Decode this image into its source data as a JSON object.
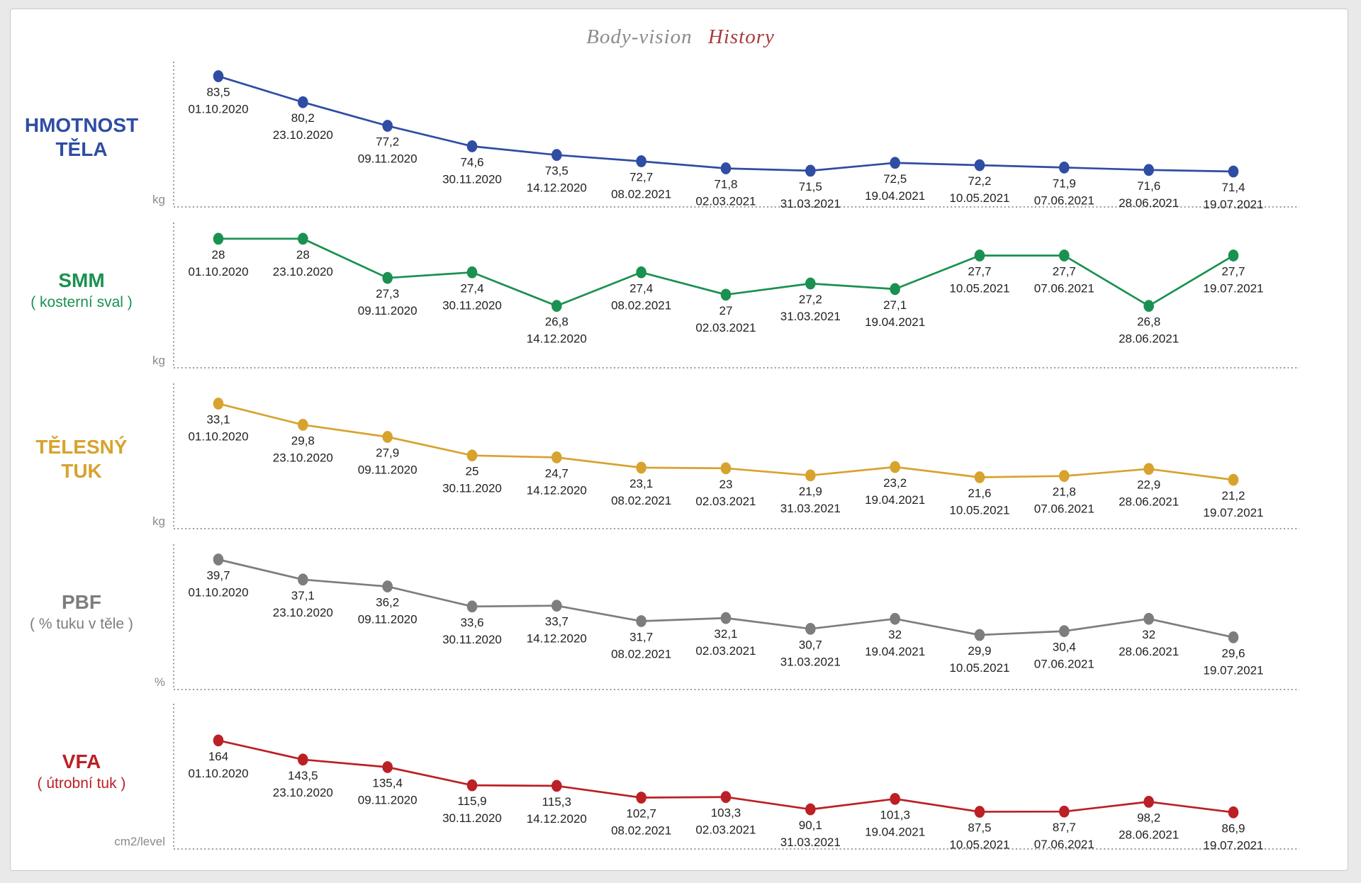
{
  "title": {
    "left": "Body-vision",
    "right": "History"
  },
  "colors": {
    "title_left": "#8b8b8b",
    "title_right": "#a93b3e",
    "data_label_text": "#222222",
    "unit_text": "#8a8a8a",
    "axis_dotted": "#9a9a9a",
    "card_border": "#c9c9c9",
    "page_background": "#e9e9e9",
    "series_blue": "#2e4da3",
    "series_green": "#1a9150",
    "series_gold": "#d7a32e",
    "series_gray": "#7d7d7d",
    "series_red": "#bb2025"
  },
  "chart_data": {
    "type": "line",
    "note": "five stacked single-series line charts sharing the same x categories",
    "categories": [
      "01.10.2020",
      "23.10.2020",
      "09.11.2020",
      "30.11.2020",
      "14.12.2020",
      "08.02.2021",
      "02.03.2021",
      "31.03.2021",
      "19.04.2021",
      "10.05.2021",
      "07.06.2021",
      "28.06.2021",
      "19.07.2021"
    ],
    "charts": [
      {
        "type": "line",
        "name": "HMOTNOST TĚLA",
        "label_line1": "HMOTNOST",
        "label_line2": "TĚLA",
        "sublabel": "",
        "unit": "kg",
        "color": "#2e4da3",
        "values": [
          83.5,
          80.2,
          77.2,
          74.6,
          73.5,
          72.7,
          71.8,
          71.5,
          72.5,
          72.2,
          71.9,
          71.6,
          71.4
        ],
        "value_labels": [
          "83,5",
          "80,2",
          "77,2",
          "74,6",
          "73,5",
          "72,7",
          "71,8",
          "71,5",
          "72,5",
          "72,2",
          "71,9",
          "71,6",
          "71,4"
        ],
        "ylim": [
          70.5,
          84
        ]
      },
      {
        "type": "line",
        "name": "SMM ( kosterní sval )",
        "label_line1": "SMM",
        "label_line2": "",
        "sublabel": "( kosterní sval )",
        "unit": "kg",
        "color": "#1a9150",
        "values": [
          28,
          28,
          27.3,
          27.4,
          26.8,
          27.4,
          27,
          27.2,
          27.1,
          27.7,
          27.7,
          26.8,
          27.7
        ],
        "value_labels": [
          "28",
          "28",
          "27,3",
          "27,4",
          "26,8",
          "27,4",
          "27",
          "27,2",
          "27,1",
          "27,7",
          "27,7",
          "26,8",
          "27,7"
        ],
        "ylim": [
          26.2,
          28.1
        ]
      },
      {
        "type": "line",
        "name": "TĚLESNÝ TUK",
        "label_line1": "TĚLESNÝ",
        "label_line2": "TUK",
        "sublabel": "",
        "unit": "kg",
        "color": "#d7a32e",
        "values": [
          33.1,
          29.8,
          27.9,
          25,
          24.7,
          23.1,
          23,
          21.9,
          23.2,
          21.6,
          21.8,
          22.9,
          21.2
        ],
        "value_labels": [
          "33,1",
          "29,8",
          "27,9",
          "25",
          "24,7",
          "23,1",
          "23",
          "21,9",
          "23,2",
          "21,6",
          "21,8",
          "22,9",
          "21,2"
        ],
        "ylim": [
          18,
          34.6
        ]
      },
      {
        "type": "line",
        "name": "PBF ( % tuku v těle )",
        "label_line1": "PBF",
        "label_line2": "",
        "sublabel": "( % tuku v těle )",
        "unit": "%",
        "color": "#7d7d7d",
        "values": [
          39.7,
          37.1,
          36.2,
          33.6,
          33.7,
          31.7,
          32.1,
          30.7,
          32,
          29.9,
          30.4,
          32,
          29.6
        ],
        "value_labels": [
          "39,7",
          "37,1",
          "36,2",
          "33,6",
          "33,7",
          "31,7",
          "32,1",
          "30,7",
          "32",
          "29,9",
          "30,4",
          "32",
          "29,6"
        ],
        "ylim": [
          26.5,
          40.3
        ]
      },
      {
        "type": "line",
        "name": "VFA ( útrobní tuk )",
        "label_line1": "VFA",
        "label_line2": "",
        "sublabel": "( útrobní tuk )",
        "unit": "cm2/level",
        "color": "#bb2025",
        "values": [
          164,
          143.5,
          135.4,
          115.9,
          115.3,
          102.7,
          103.3,
          90.1,
          101.3,
          87.5,
          87.7,
          98.2,
          86.9
        ],
        "value_labels": [
          "164",
          "143,5",
          "135,4",
          "115,9",
          "115,3",
          "102,7",
          "103,3",
          "90,1",
          "101,3",
          "87,5",
          "87,7",
          "98,2",
          "86,9"
        ],
        "ylim": [
          78,
          192
        ]
      }
    ]
  }
}
